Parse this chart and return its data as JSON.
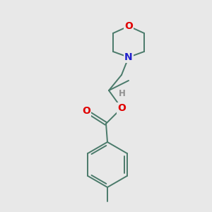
{
  "background_color": "#e8e8e8",
  "bond_color": "#4a7a6a",
  "atom_colors": {
    "O": "#e00000",
    "N": "#2020cc",
    "H": "#909090",
    "C": "#4a7a6a"
  },
  "figsize": [
    3.0,
    3.0
  ],
  "dpi": 100,
  "lw": 1.4,
  "fs": 8.5
}
